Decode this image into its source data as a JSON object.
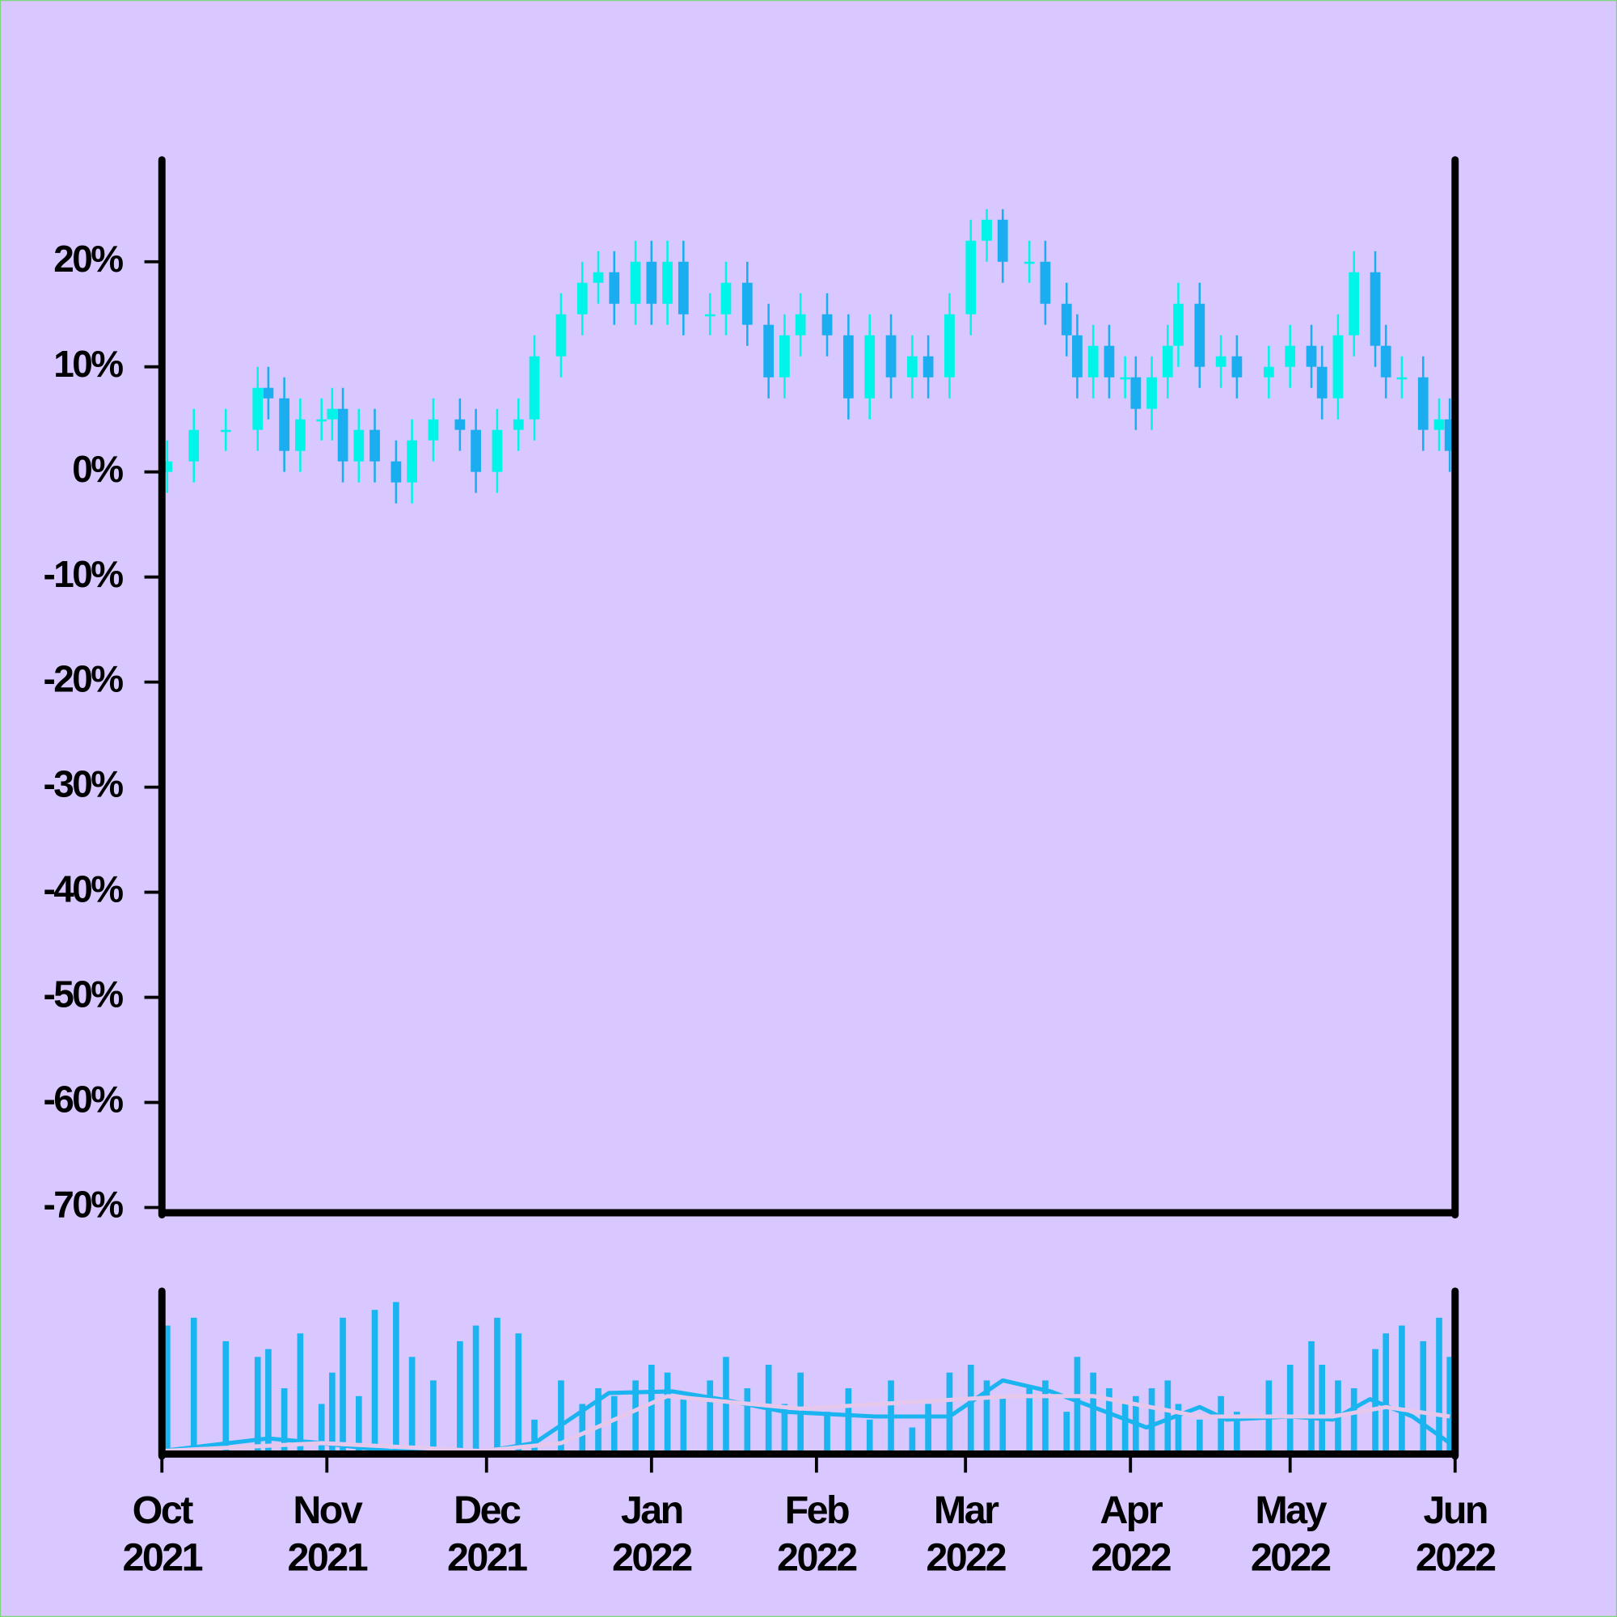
{
  "chart_data": [
    {
      "type": "candlestick",
      "up_color": "#00f5e8",
      "down_color": "#1aaef0",
      "x": [
        1,
        6,
        12,
        18,
        20,
        23,
        26,
        30,
        32,
        34,
        37,
        40,
        44,
        47,
        51,
        56,
        59,
        63,
        67,
        70,
        75,
        79,
        82,
        85,
        89,
        92,
        95,
        98,
        103,
        106,
        110,
        114,
        117,
        120,
        125,
        129,
        133,
        137,
        141,
        144,
        148,
        152,
        155,
        158,
        163,
        166,
        170,
        172,
        175,
        178,
        181,
        183,
        186,
        189,
        191,
        195,
        199,
        202,
        208,
        212,
        216,
        218,
        221,
        224,
        228,
        230,
        233,
        237,
        240,
        242
      ],
      "open": [
        0,
        1,
        4,
        4,
        8,
        7,
        2,
        5,
        5,
        6,
        1,
        4,
        1,
        -1,
        3,
        5,
        4,
        0,
        4,
        5,
        11,
        15,
        18,
        19,
        16,
        20,
        16,
        20,
        15,
        15,
        18,
        14,
        9,
        13,
        15,
        13,
        7,
        13,
        9,
        11,
        9,
        15,
        22,
        24,
        20,
        20,
        16,
        13,
        9,
        12,
        9,
        9,
        6,
        9,
        12,
        16,
        10,
        11,
        9,
        10,
        12,
        10,
        7,
        13,
        19,
        12,
        9,
        9,
        4,
        5
      ],
      "high": [
        3,
        6,
        6,
        10,
        10,
        9,
        7,
        7,
        8,
        8,
        6,
        6,
        3,
        5,
        7,
        7,
        6,
        6,
        7,
        13,
        17,
        20,
        21,
        21,
        22,
        22,
        22,
        22,
        17,
        20,
        20,
        16,
        15,
        17,
        17,
        15,
        15,
        15,
        13,
        13,
        17,
        24,
        25,
        25,
        22,
        22,
        18,
        15,
        14,
        14,
        11,
        11,
        11,
        14,
        18,
        18,
        13,
        13,
        12,
        14,
        14,
        12,
        15,
        21,
        21,
        14,
        11,
        11,
        7,
        7
      ],
      "low": [
        -2,
        -1,
        2,
        2,
        5,
        0,
        0,
        3,
        3,
        -1,
        -1,
        -1,
        -3,
        -3,
        1,
        2,
        -2,
        -2,
        2,
        3,
        9,
        13,
        16,
        14,
        14,
        14,
        14,
        13,
        13,
        13,
        12,
        7,
        7,
        11,
        11,
        5,
        5,
        7,
        7,
        7,
        7,
        13,
        20,
        18,
        18,
        14,
        11,
        7,
        7,
        7,
        7,
        4,
        4,
        7,
        10,
        8,
        8,
        7,
        7,
        8,
        8,
        5,
        5,
        11,
        10,
        7,
        7,
        2,
        2,
        0
      ],
      "close": [
        1,
        4,
        4,
        8,
        7,
        2,
        5,
        5,
        6,
        1,
        4,
        1,
        -1,
        3,
        5,
        4,
        0,
        4,
        5,
        11,
        15,
        18,
        19,
        16,
        20,
        16,
        20,
        15,
        15,
        18,
        14,
        9,
        13,
        15,
        13,
        7,
        13,
        9,
        11,
        9,
        15,
        22,
        24,
        20,
        20,
        16,
        13,
        9,
        12,
        9,
        9,
        6,
        9,
        12,
        16,
        10,
        11,
        9,
        10,
        12,
        10,
        7,
        13,
        19,
        12,
        9,
        9,
        4,
        5,
        2
      ],
      "xlim": [
        0,
        243
      ],
      "ylim": [
        -70.5,
        29.5
      ],
      "yticks": [
        {
          "value": -70,
          "label": "-70%"
        },
        {
          "value": -60,
          "label": "-60%"
        },
        {
          "value": -50,
          "label": "-50%"
        },
        {
          "value": -40,
          "label": "-40%"
        },
        {
          "value": -30,
          "label": "-30%"
        },
        {
          "value": -20,
          "label": "-20%"
        },
        {
          "value": -10,
          "label": "-10%"
        },
        {
          "value": 0,
          "label": "0%"
        },
        {
          "value": 10,
          "label": "10%"
        },
        {
          "value": 20,
          "label": "20%"
        }
      ]
    },
    {
      "type": "bar",
      "color": "#1ab4f0",
      "x": [
        1,
        6,
        12,
        18,
        20,
        23,
        26,
        30,
        32,
        34,
        37,
        40,
        44,
        47,
        51,
        56,
        59,
        63,
        67,
        70,
        75,
        79,
        82,
        85,
        89,
        92,
        95,
        98,
        103,
        106,
        110,
        114,
        117,
        120,
        125,
        129,
        133,
        137,
        141,
        144,
        148,
        152,
        155,
        158,
        163,
        166,
        170,
        172,
        175,
        178,
        181,
        183,
        186,
        189,
        191,
        195,
        199,
        202,
        208,
        212,
        216,
        218,
        221,
        224,
        228,
        230,
        233,
        237,
        240,
        242
      ],
      "values": [
        80,
        85,
        70,
        60,
        65,
        40,
        75,
        30,
        50,
        85,
        35,
        90,
        95,
        60,
        45,
        70,
        80,
        85,
        75,
        20,
        45,
        30,
        40,
        35,
        45,
        55,
        50,
        35,
        45,
        60,
        40,
        55,
        30,
        50,
        25,
        40,
        20,
        45,
        15,
        30,
        50,
        55,
        45,
        35,
        40,
        45,
        25,
        60,
        50,
        40,
        30,
        35,
        40,
        45,
        30,
        20,
        35,
        25,
        45,
        55,
        70,
        55,
        45,
        40,
        65,
        75,
        80,
        70,
        85,
        60
      ],
      "xlim": [
        0,
        243
      ],
      "ylim": [
        0,
        100
      ],
      "series": [
        {
          "color": "#1ab4f0",
          "x": [
            0,
            20,
            30,
            43,
            61,
            70,
            84,
            96,
            105,
            117,
            134,
            148,
            158,
            167,
            175,
            185,
            195,
            200,
            212,
            220,
            227,
            235,
            242
          ],
          "values": [
            0,
            8,
            5,
            0,
            0,
            5,
            37,
            38,
            33,
            25,
            22,
            22,
            45,
            38,
            28,
            15,
            28,
            20,
            22,
            20,
            33,
            22,
            5
          ]
        },
        {
          "color": "#e6c8ec",
          "x": [
            0,
            30,
            60,
            75,
            95,
            120,
            160,
            175,
            195,
            220,
            230,
            242
          ],
          "values": [
            0,
            5,
            0,
            5,
            35,
            27,
            35,
            35,
            22,
            22,
            28,
            22
          ]
        }
      ],
      "xticks": [
        {
          "value": 0,
          "label": "Oct 2021"
        },
        {
          "value": 31,
          "label": "Nov 2021"
        },
        {
          "value": 61,
          "label": "Dec 2021"
        },
        {
          "value": 92,
          "label": "Jan 2022"
        },
        {
          "value": 123,
          "label": "Feb 2022"
        },
        {
          "value": 151,
          "label": "Mar 2022"
        },
        {
          "value": 182,
          "label": "Apr 2022"
        },
        {
          "value": 212,
          "label": "May 2022"
        },
        {
          "value": 243,
          "label": "Jun 2022"
        }
      ]
    }
  ]
}
